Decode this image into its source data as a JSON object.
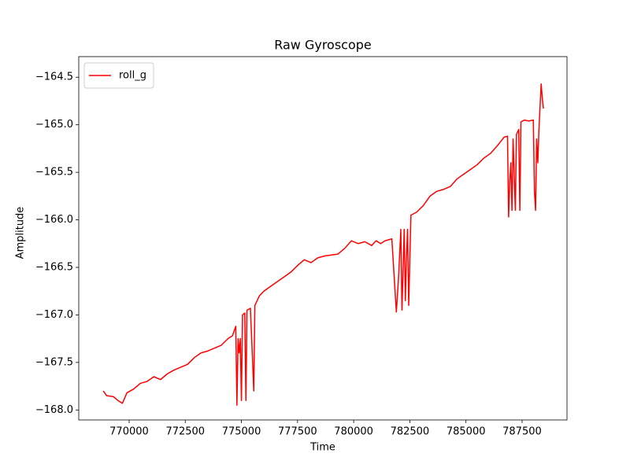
{
  "chart_data": {
    "type": "line",
    "title": "Raw Gyroscope",
    "x_label": "Time",
    "y_label": "Amplitude",
    "x": [
      768850,
      769000,
      769300,
      769500,
      769700,
      769900,
      770200,
      770500,
      770800,
      771100,
      771400,
      771700,
      772000,
      772300,
      772600,
      772900,
      773200,
      773500,
      773800,
      774100,
      774400,
      774600,
      774750,
      774800,
      774850,
      774900,
      774950,
      775000,
      775050,
      775150,
      775200,
      775250,
      775400,
      775500,
      775550,
      775600,
      775800,
      776000,
      776300,
      776600,
      776900,
      777200,
      777500,
      777800,
      778100,
      778400,
      778700,
      779000,
      779300,
      779600,
      779900,
      780200,
      780500,
      780800,
      781000,
      781200,
      781400,
      781700,
      781900,
      782000,
      782100,
      782150,
      782250,
      782300,
      782350,
      782400,
      782450,
      782550,
      782800,
      783100,
      783400,
      783700,
      784000,
      784300,
      784600,
      784900,
      785200,
      785500,
      785800,
      786100,
      786400,
      786700,
      786850,
      786900,
      786950,
      787000,
      787050,
      787100,
      787200,
      787250,
      787350,
      787400,
      787450,
      787600,
      787800,
      788000,
      788050,
      788100,
      788150,
      788200,
      788250,
      788350,
      788400,
      788450
    ],
    "series": [
      {
        "name": "roll_g",
        "color": "#ff0000",
        "values": [
          -167.8,
          -167.85,
          -167.86,
          -167.9,
          -167.93,
          -167.82,
          -167.78,
          -167.72,
          -167.7,
          -167.65,
          -167.68,
          -167.62,
          -167.58,
          -167.55,
          -167.52,
          -167.45,
          -167.4,
          -167.38,
          -167.35,
          -167.32,
          -167.25,
          -167.22,
          -167.12,
          -167.95,
          -167.25,
          -167.4,
          -167.25,
          -167.9,
          -167.0,
          -166.98,
          -167.9,
          -166.95,
          -166.93,
          -167.5,
          -167.8,
          -166.9,
          -166.8,
          -166.75,
          -166.7,
          -166.65,
          -166.6,
          -166.55,
          -166.48,
          -166.42,
          -166.45,
          -166.4,
          -166.38,
          -166.37,
          -166.36,
          -166.3,
          -166.22,
          -166.25,
          -166.23,
          -166.27,
          -166.22,
          -166.25,
          -166.22,
          -166.2,
          -166.97,
          -166.6,
          -166.1,
          -166.95,
          -166.1,
          -166.85,
          -166.4,
          -166.1,
          -166.9,
          -165.95,
          -165.92,
          -165.85,
          -165.75,
          -165.7,
          -165.68,
          -165.65,
          -165.57,
          -165.52,
          -165.47,
          -165.42,
          -165.35,
          -165.3,
          -165.22,
          -165.13,
          -165.12,
          -165.97,
          -165.6,
          -165.4,
          -165.9,
          -165.15,
          -165.9,
          -165.1,
          -165.05,
          -165.9,
          -164.97,
          -164.95,
          -164.96,
          -164.95,
          -165.7,
          -165.9,
          -165.15,
          -165.4,
          -165.05,
          -164.57,
          -164.72,
          -164.83
        ]
      }
    ],
    "xlim": [
      767756,
      789500
    ],
    "ylim": [
      -168.105,
      -164.283
    ],
    "xticks": [
      770000,
      772500,
      775000,
      777500,
      780000,
      782500,
      785000,
      787500
    ],
    "yticks": [
      {
        "value": -164.5,
        "label": "−164.5"
      },
      {
        "value": -165.0,
        "label": "−165.0"
      },
      {
        "value": -165.5,
        "label": "−165.5"
      },
      {
        "value": -166.0,
        "label": "−166.0"
      },
      {
        "value": -166.5,
        "label": "−166.5"
      },
      {
        "value": -167.0,
        "label": "−167.0"
      },
      {
        "value": -167.5,
        "label": "−167.5"
      },
      {
        "value": -168.0,
        "label": "−168.0"
      }
    ],
    "legend": "upper left"
  }
}
